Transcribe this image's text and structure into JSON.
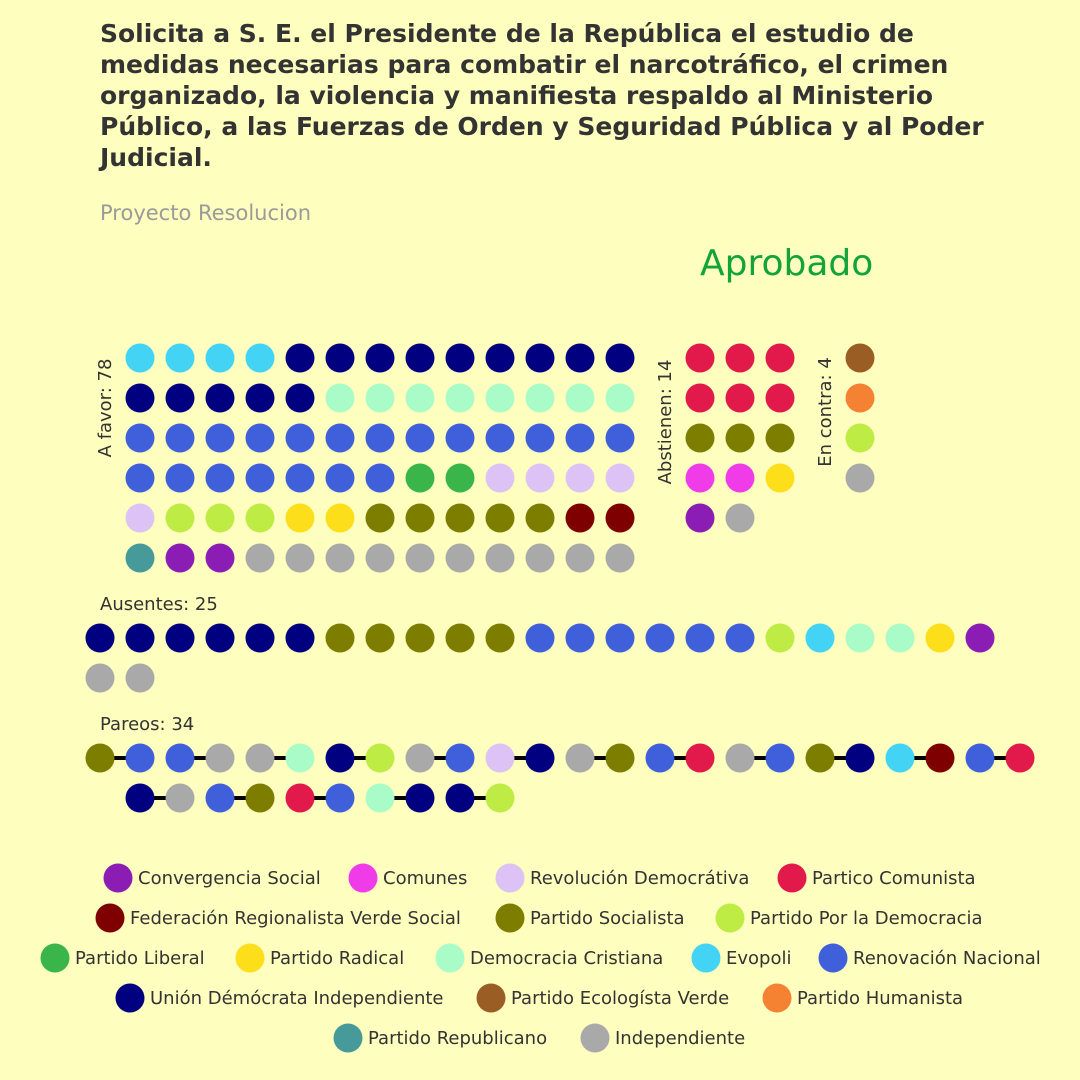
{
  "title": "Solicita a S. E. el Presidente de la República el estudio de medidas necesarias para combatir el narcotráfico, el crimen organizado, la violencia y manifiesta respaldo al Ministerio Público, a las Fuerzas de Orden y Seguridad Pública y al Poder Judicial.",
  "subtitle": "Proyecto Resolucion",
  "result": "Aprobado",
  "colors": {
    "background": "#FEFEBE",
    "result": "#12A33A"
  },
  "chart_data": {
    "type": "dot-plot",
    "parties": [
      {
        "id": "CS",
        "name": "Convergencia Social",
        "color": "#8B1DB5"
      },
      {
        "id": "COM",
        "name": "Comunes",
        "color": "#F03BE8"
      },
      {
        "id": "RD",
        "name": "Revolución Democrátiva",
        "color": "#DCC2F5"
      },
      {
        "id": "PC",
        "name": "Partico Comunista",
        "color": "#E2194B"
      },
      {
        "id": "FRVS",
        "name": "Federación Regionalista Verde Social",
        "color": "#7E0000"
      },
      {
        "id": "PS",
        "name": "Partido Socialista",
        "color": "#7D7D00"
      },
      {
        "id": "PPD",
        "name": "Partido Por la Democracia",
        "color": "#BFEB45"
      },
      {
        "id": "PL",
        "name": "Partido Liberal",
        "color": "#3AB54A"
      },
      {
        "id": "PR",
        "name": "Partido Radical",
        "color": "#FCDE1A"
      },
      {
        "id": "DC",
        "name": "Democracia Cristiana",
        "color": "#A9FCC8"
      },
      {
        "id": "EVO",
        "name": "Evopoli",
        "color": "#42D3F5"
      },
      {
        "id": "RN",
        "name": "Renovación Nacional",
        "color": "#405FDA"
      },
      {
        "id": "UDI",
        "name": "Unión Démócrata Independiente",
        "color": "#000080"
      },
      {
        "id": "PEV",
        "name": "Partido Ecologísta Verde",
        "color": "#9A5E25"
      },
      {
        "id": "PH",
        "name": "Partido Humanista",
        "color": "#F58233"
      },
      {
        "id": "REP",
        "name": "Partido Republicano",
        "color": "#479A9A"
      },
      {
        "id": "IND",
        "name": "Independiente",
        "color": "#A9A9A9"
      }
    ],
    "groups": {
      "favor": {
        "label": "A favor: 78",
        "rows": [
          [
            "EVO",
            "EVO",
            "EVO",
            "EVO",
            "UDI",
            "UDI",
            "UDI",
            "UDI",
            "UDI",
            "UDI",
            "UDI",
            "UDI",
            "UDI"
          ],
          [
            "UDI",
            "UDI",
            "UDI",
            "UDI",
            "UDI",
            "DC",
            "DC",
            "DC",
            "DC",
            "DC",
            "DC",
            "DC",
            "DC"
          ],
          [
            "RN",
            "RN",
            "RN",
            "RN",
            "RN",
            "RN",
            "RN",
            "RN",
            "RN",
            "RN",
            "RN",
            "RN",
            "RN"
          ],
          [
            "RN",
            "RN",
            "RN",
            "RN",
            "RN",
            "RN",
            "RN",
            "PL",
            "PL",
            "RD",
            "RD",
            "RD",
            "RD"
          ],
          [
            "RD",
            "PPD",
            "PPD",
            "PPD",
            "PR",
            "PR",
            "PS",
            "PS",
            "PS",
            "PS",
            "PS",
            "FRVS",
            "FRVS"
          ],
          [
            "REP",
            "CS",
            "CS",
            "IND",
            "IND",
            "IND",
            "IND",
            "IND",
            "IND",
            "IND",
            "IND",
            "IND",
            "IND"
          ]
        ]
      },
      "abstienen": {
        "label": "Abstienen: 14",
        "rows": [
          [
            "PC",
            "PC",
            "PC"
          ],
          [
            "PC",
            "PC",
            "PC"
          ],
          [
            "PS",
            "PS",
            "PS"
          ],
          [
            "COM",
            "COM",
            "PR"
          ],
          [
            "CS",
            "IND"
          ]
        ]
      },
      "contra": {
        "label": "En contra: 4",
        "rows": [
          [
            "PEV"
          ],
          [
            "PH"
          ],
          [
            "PPD"
          ],
          [
            "IND"
          ]
        ]
      },
      "ausentes": {
        "label": "Ausentes: 25",
        "rows": [
          [
            "UDI",
            "UDI",
            "UDI",
            "UDI",
            "UDI",
            "UDI",
            "PS",
            "PS",
            "PS",
            "PS",
            "PS",
            "RN",
            "RN",
            "RN",
            "RN",
            "RN",
            "RN",
            "PPD",
            "EVO",
            "DC",
            "DC",
            "PR",
            "CS"
          ],
          [
            "IND",
            "IND"
          ]
        ]
      },
      "pareos": {
        "label": "Pareos: 34",
        "rows": [
          [
            "PS",
            "RN",
            "RN",
            "IND",
            "IND",
            "DC",
            "UDI",
            "PPD",
            "IND",
            "RN",
            "RD",
            "UDI",
            "IND",
            "PS",
            "RN",
            "PC",
            "IND",
            "RN",
            "PS",
            "UDI",
            "EVO",
            "FRVS",
            "RN",
            "PC"
          ],
          [
            "UDI",
            "IND",
            "RN",
            "PS",
            "PC",
            "RN",
            "DC",
            "UDI",
            "UDI",
            "PPD"
          ]
        ]
      }
    }
  }
}
